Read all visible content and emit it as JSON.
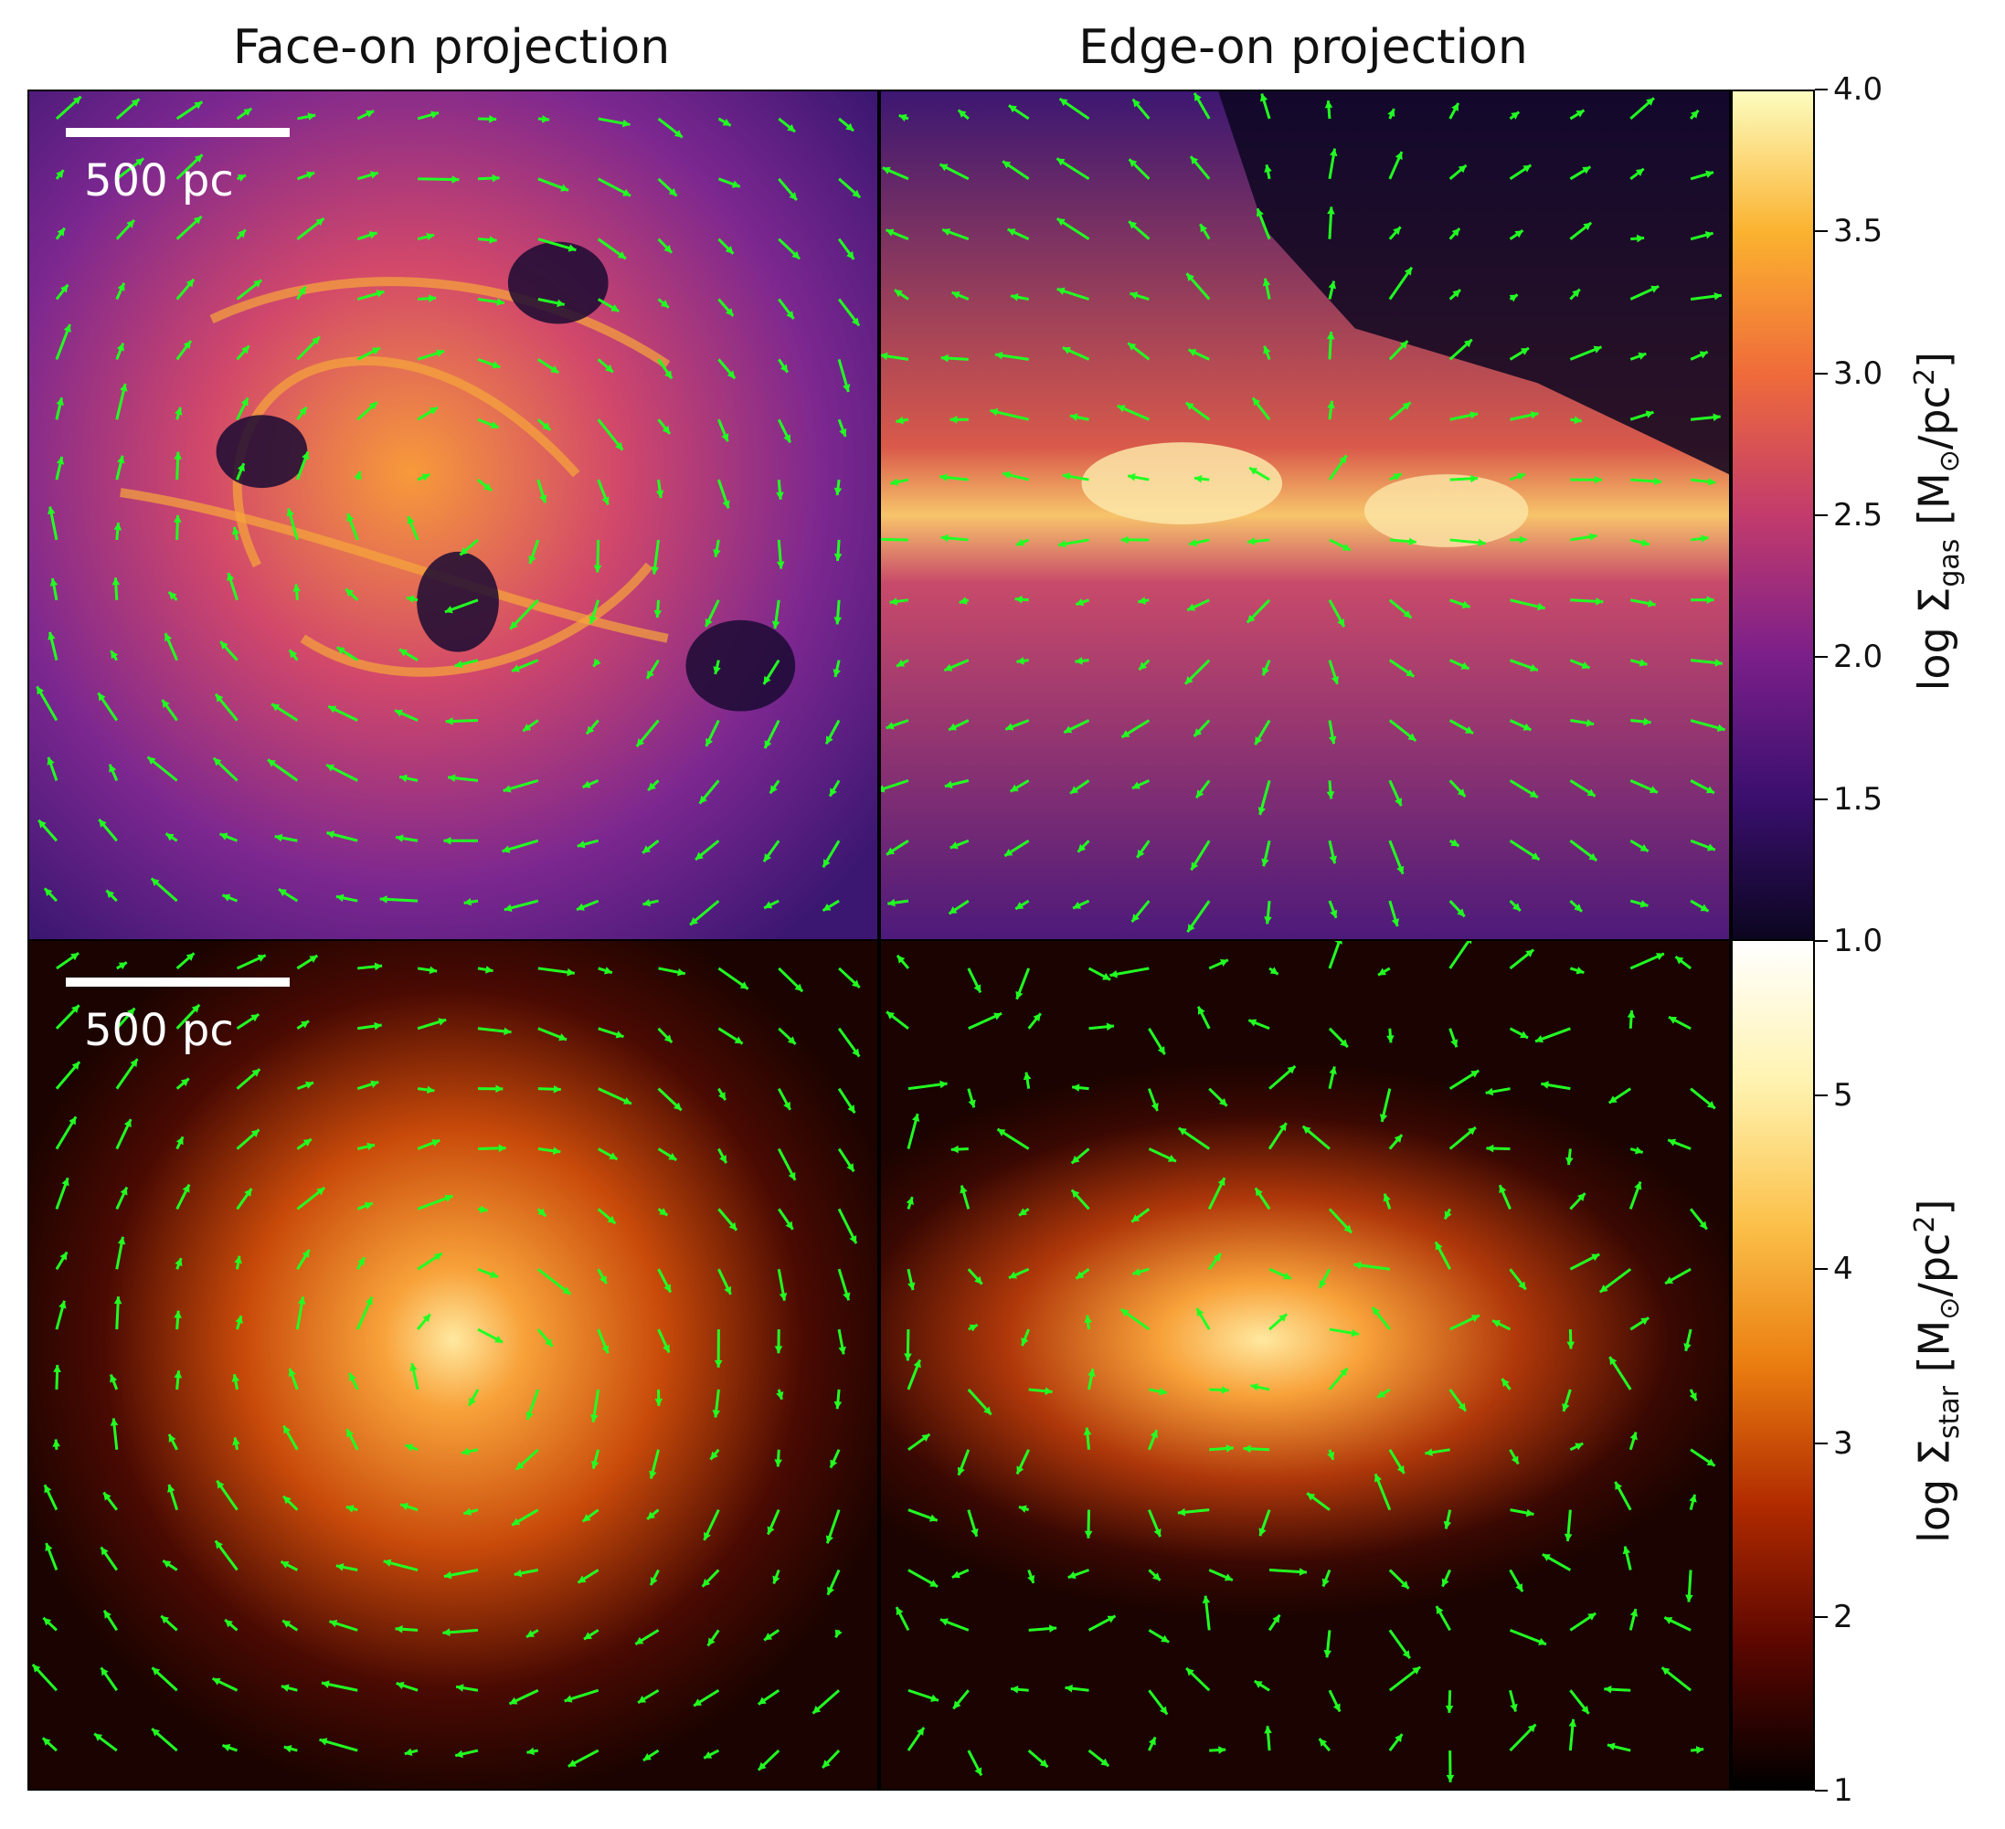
{
  "titles": {
    "face_on": "Face-on projection",
    "edge_on": "Edge-on projection"
  },
  "scalebar": {
    "label": "500 pc"
  },
  "colorbars": {
    "gas": {
      "label_prefix": "log Σ",
      "label_sub": "gas",
      "label_unit_open": " [M",
      "label_unit_sub": "⊙",
      "label_unit_mid": "/pc",
      "label_unit_sup": "2",
      "label_unit_close": "]",
      "ticks": [
        "1.0",
        "1.5",
        "2.0",
        "2.5",
        "3.0",
        "3.5",
        "4.0"
      ],
      "range": [
        1.0,
        4.0
      ],
      "colormap": "plasma-like",
      "colors": [
        "#0b0620",
        "#3a0f6e",
        "#7b1f8a",
        "#c23b6c",
        "#ef6b3a",
        "#fbb22f",
        "#fcfdbf"
      ]
    },
    "star": {
      "label_prefix": "log Σ",
      "label_sub": "star",
      "label_unit_open": " [M",
      "label_unit_sub": "⊙",
      "label_unit_mid": "/pc",
      "label_unit_sup": "2",
      "label_unit_close": "]",
      "ticks": [
        "1",
        "2",
        "3",
        "4",
        "5"
      ],
      "range": [
        1,
        5.9
      ],
      "colormap": "afmhot-like",
      "colors": [
        "#000000",
        "#5a0600",
        "#b02a00",
        "#ea7d10",
        "#fbc14a",
        "#fff3b0",
        "#ffffff"
      ]
    }
  },
  "arrow_color": "#22ff22"
}
